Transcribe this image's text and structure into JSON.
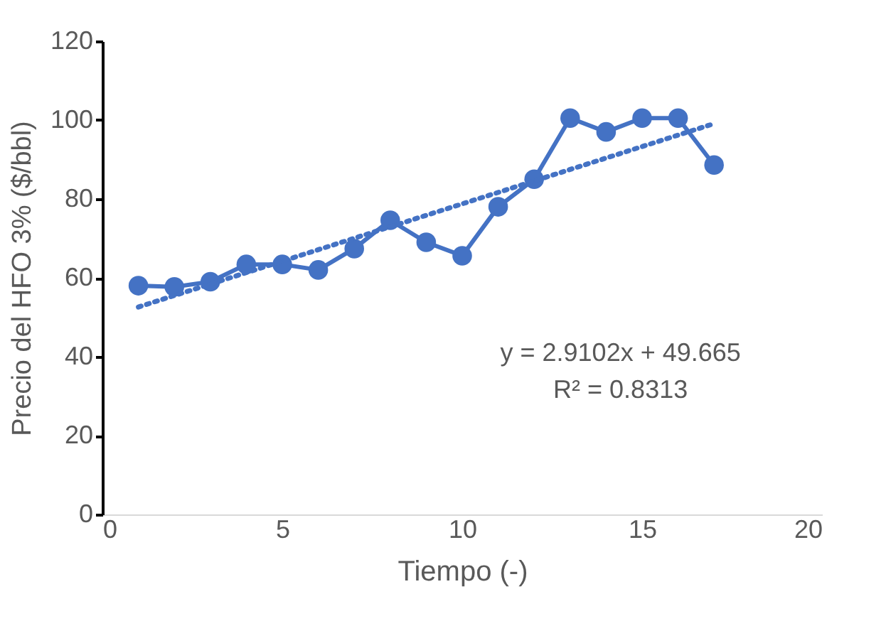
{
  "chart_data": {
    "type": "line",
    "xlabel": "Tiempo (-)",
    "ylabel": "Precio del HFO 3% ($/bbl)",
    "xlim": [
      0,
      20
    ],
    "xticks": [
      0,
      5,
      10,
      15,
      20
    ],
    "ylim": [
      0,
      120
    ],
    "yticks": [
      0,
      20,
      40,
      60,
      80,
      100,
      120
    ],
    "grid": false,
    "marker": "circle",
    "line_style": "solid",
    "series": [
      {
        "color": "#4472c4",
        "x": [
          1,
          2,
          3,
          4,
          5,
          6,
          7,
          8,
          9,
          10,
          11,
          12,
          13,
          14,
          15,
          16,
          17
        ],
        "values": [
          58,
          57.7,
          59,
          63.4,
          63.4,
          62,
          67.4,
          74.6,
          69,
          65.6,
          78,
          85,
          100.5,
          97,
          100.5,
          100.5,
          88.6
        ]
      },
      {
        "type": "line",
        "color": "#4472c4",
        "marker": "none",
        "line_style": "dotted",
        "x": [
          1,
          17
        ],
        "values": [
          52.6,
          99.1
        ]
      }
    ],
    "annotations": [
      "y = 2.9102x + 49.665",
      "R² = 0.8313"
    ]
  }
}
